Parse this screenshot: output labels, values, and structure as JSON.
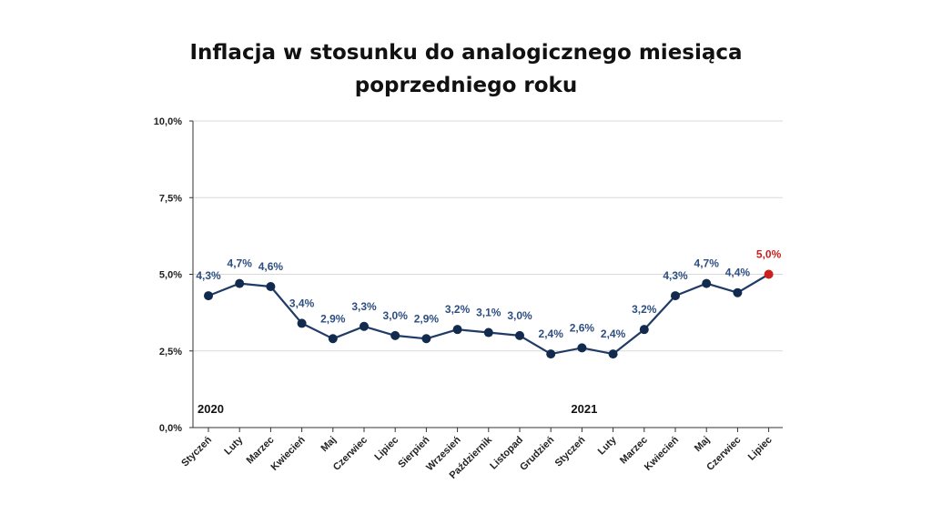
{
  "chart_data": {
    "type": "line",
    "title_line1": "Inflacja w stosunku do analogicznego miesiąca",
    "title_line2": "poprzedniego roku",
    "categories": [
      "Styczeń",
      "Luty",
      "Marzec",
      "Kwiecień",
      "Maj",
      "Czerwiec",
      "Lipiec",
      "Sierpień",
      "Wrzesień",
      "Październik",
      "Listopad",
      "Grudzień",
      "Styczeń",
      "Luty",
      "Marzec",
      "Kwiecień",
      "Maj",
      "Czerwiec",
      "Lipiec"
    ],
    "values": [
      4.3,
      4.7,
      4.6,
      3.4,
      2.9,
      3.3,
      3.0,
      2.9,
      3.2,
      3.1,
      3.0,
      2.4,
      2.6,
      2.4,
      3.2,
      4.3,
      4.7,
      4.4,
      5.0
    ],
    "data_labels": [
      "4,3%",
      "4,7%",
      "4,6%",
      "3,4%",
      "2,9%",
      "3,3%",
      "3,0%",
      "2,9%",
      "3,2%",
      "3,1%",
      "3,0%",
      "2,4%",
      "2,6%",
      "2,4%",
      "3,2%",
      "4,3%",
      "4,7%",
      "4,4%",
      "5,0%"
    ],
    "ylim": [
      0,
      10
    ],
    "yticks": [
      0,
      2.5,
      5,
      7.5,
      10
    ],
    "ytick_labels": [
      "0,0%",
      "2,5%",
      "5,0%",
      "7,5%",
      "10,0%"
    ],
    "year_labels": [
      {
        "text": "2020",
        "category_index": 0
      },
      {
        "text": "2021",
        "category_index": 12
      }
    ],
    "highlight_index": 18,
    "grid": true,
    "colors": {
      "line": "#1f3b66",
      "marker": "#112a4d",
      "label": "#2d4e80",
      "highlight": "#cc1f1f",
      "grid": "#d9d9d9"
    }
  }
}
